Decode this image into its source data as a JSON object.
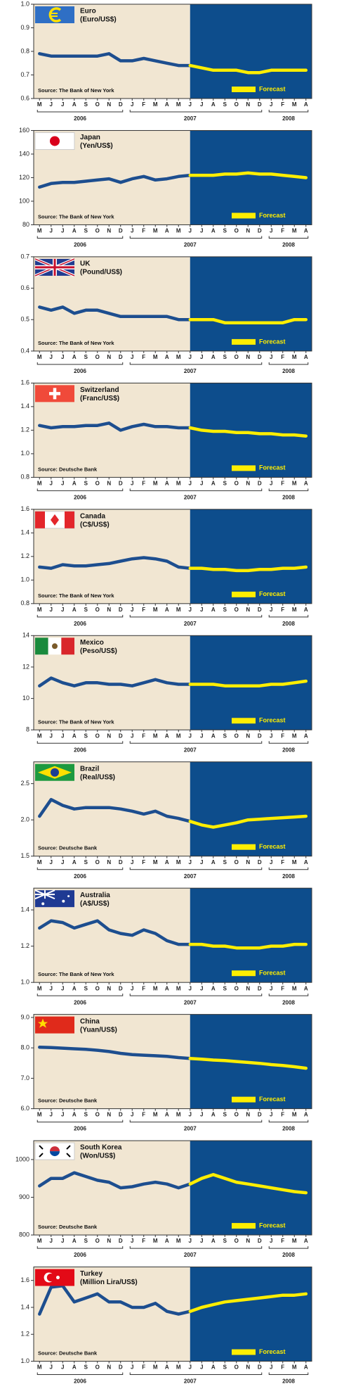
{
  "chart_data": [
    {
      "type": "line",
      "title": "Euro",
      "subtitle": "(Euro/US$)",
      "source": "Source: The Bank of New York",
      "categories": [
        "M",
        "J",
        "J",
        "A",
        "S",
        "O",
        "N",
        "D",
        "J",
        "F",
        "M",
        "A",
        "M",
        "J",
        "J",
        "A",
        "S",
        "O",
        "N",
        "D",
        "J",
        "F",
        "M",
        "A"
      ],
      "years": [
        "2006",
        "2007",
        "2008"
      ],
      "ylim": [
        0.6,
        1.0
      ],
      "yticks": [
        0.6,
        0.7,
        0.8,
        0.9,
        {
          "value": 1,
          "label": "1.0"
        }
      ],
      "series": [
        {
          "color": "#1d4e8f",
          "values": [
            0.79,
            0.78,
            0.78,
            0.78,
            0.78,
            0.78,
            0.79,
            0.76,
            0.76,
            0.77,
            0.76,
            0.75,
            0.74,
            0.74,
            null,
            null,
            null,
            null,
            null,
            null,
            null,
            null,
            null,
            null
          ]
        },
        {
          "name": "Forecast",
          "color": "#ffee00",
          "values": [
            null,
            null,
            null,
            null,
            null,
            null,
            null,
            null,
            null,
            null,
            null,
            null,
            null,
            0.74,
            0.73,
            0.72,
            0.72,
            0.72,
            0.71,
            0.71,
            0.72,
            0.72,
            0.72,
            0.72
          ]
        }
      ]
    },
    {
      "type": "line",
      "title": "Japan",
      "subtitle": "(Yen/US$)",
      "source": "Source: The Bank of New York",
      "categories": [
        "M",
        "J",
        "J",
        "A",
        "S",
        "O",
        "N",
        "D",
        "J",
        "F",
        "M",
        "A",
        "M",
        "J",
        "J",
        "A",
        "S",
        "O",
        "N",
        "D",
        "J",
        "F",
        "M",
        "A"
      ],
      "years": [
        "2006",
        "2007",
        "2008"
      ],
      "ylim": [
        80,
        160
      ],
      "yticks": [
        80,
        100,
        120,
        140,
        160
      ],
      "series": [
        {
          "color": "#1d4e8f",
          "values": [
            112,
            115,
            116,
            116,
            117,
            118,
            119,
            116,
            119,
            121,
            118,
            119,
            121,
            122,
            null,
            null,
            null,
            null,
            null,
            null,
            null,
            null,
            null,
            null
          ]
        },
        {
          "name": "Forecast",
          "color": "#ffee00",
          "values": [
            null,
            null,
            null,
            null,
            null,
            null,
            null,
            null,
            null,
            null,
            null,
            null,
            null,
            122,
            122,
            122,
            123,
            123,
            124,
            123,
            123,
            122,
            121,
            120
          ]
        }
      ]
    },
    {
      "type": "line",
      "title": "UK",
      "subtitle": "(Pound/US$)",
      "source": "Source: The Bank of New York",
      "categories": [
        "M",
        "J",
        "J",
        "A",
        "S",
        "O",
        "N",
        "D",
        "J",
        "F",
        "M",
        "A",
        "M",
        "J",
        "J",
        "A",
        "S",
        "O",
        "N",
        "D",
        "J",
        "F",
        "M",
        "A"
      ],
      "years": [
        "2006",
        "2007",
        "2008"
      ],
      "ylim": [
        0.4,
        0.7
      ],
      "yticks": [
        0.4,
        0.5,
        0.6,
        0.7
      ],
      "series": [
        {
          "color": "#1d4e8f",
          "values": [
            0.54,
            0.53,
            0.54,
            0.52,
            0.53,
            0.53,
            0.52,
            0.51,
            0.51,
            0.51,
            0.51,
            0.51,
            0.5,
            0.5,
            null,
            null,
            null,
            null,
            null,
            null,
            null,
            null,
            null,
            null
          ]
        },
        {
          "name": "Forecast",
          "color": "#ffee00",
          "values": [
            null,
            null,
            null,
            null,
            null,
            null,
            null,
            null,
            null,
            null,
            null,
            null,
            null,
            0.5,
            0.5,
            0.5,
            0.49,
            0.49,
            0.49,
            0.49,
            0.49,
            0.49,
            0.5,
            0.5
          ]
        }
      ]
    },
    {
      "type": "line",
      "title": "Switzerland",
      "subtitle": "(Franc/US$)",
      "source": "Source: Deutsche Bank",
      "categories": [
        "M",
        "J",
        "J",
        "A",
        "S",
        "O",
        "N",
        "D",
        "J",
        "F",
        "M",
        "A",
        "M",
        "J",
        "J",
        "A",
        "S",
        "O",
        "N",
        "D",
        "J",
        "F",
        "M",
        "A"
      ],
      "years": [
        "2006",
        "2007",
        "2008"
      ],
      "ylim": [
        0.8,
        1.6
      ],
      "yticks": [
        0.8,
        {
          "value": 1,
          "label": "1.0"
        },
        1.2,
        1.4,
        1.6
      ],
      "series": [
        {
          "color": "#1d4e8f",
          "values": [
            1.24,
            1.22,
            1.23,
            1.23,
            1.24,
            1.24,
            1.26,
            1.2,
            1.23,
            1.25,
            1.23,
            1.23,
            1.22,
            1.22,
            null,
            null,
            null,
            null,
            null,
            null,
            null,
            null,
            null,
            null
          ]
        },
        {
          "name": "Forecast",
          "color": "#ffee00",
          "values": [
            null,
            null,
            null,
            null,
            null,
            null,
            null,
            null,
            null,
            null,
            null,
            null,
            null,
            1.22,
            1.2,
            1.19,
            1.19,
            1.18,
            1.18,
            1.17,
            1.17,
            1.16,
            1.16,
            1.15
          ]
        }
      ]
    },
    {
      "type": "line",
      "title": "Canada",
      "subtitle": "(C$/US$)",
      "source": "Source: The Bank of New York",
      "categories": [
        "M",
        "J",
        "J",
        "A",
        "S",
        "O",
        "N",
        "D",
        "J",
        "F",
        "M",
        "A",
        "M",
        "J",
        "J",
        "A",
        "S",
        "O",
        "N",
        "D",
        "J",
        "F",
        "M",
        "A"
      ],
      "years": [
        "2006",
        "2007",
        "2008"
      ],
      "ylim": [
        0.8,
        1.6
      ],
      "yticks": [
        0.8,
        {
          "value": 1,
          "label": "1.0"
        },
        1.2,
        1.4,
        1.6
      ],
      "series": [
        {
          "color": "#1d4e8f",
          "values": [
            1.11,
            1.1,
            1.13,
            1.12,
            1.12,
            1.13,
            1.14,
            1.16,
            1.18,
            1.19,
            1.18,
            1.16,
            1.11,
            1.1,
            null,
            null,
            null,
            null,
            null,
            null,
            null,
            null,
            null,
            null
          ]
        },
        {
          "name": "Forecast",
          "color": "#ffee00",
          "values": [
            null,
            null,
            null,
            null,
            null,
            null,
            null,
            null,
            null,
            null,
            null,
            null,
            null,
            1.1,
            1.1,
            1.09,
            1.09,
            1.08,
            1.08,
            1.09,
            1.09,
            1.1,
            1.1,
            1.11
          ]
        }
      ]
    },
    {
      "type": "line",
      "title": "Mexico",
      "subtitle": "(Peso/US$)",
      "source": "Source: The Bank of New York",
      "categories": [
        "M",
        "J",
        "J",
        "A",
        "S",
        "O",
        "N",
        "D",
        "J",
        "F",
        "M",
        "A",
        "M",
        "J",
        "J",
        "A",
        "S",
        "O",
        "N",
        "D",
        "J",
        "F",
        "M",
        "A"
      ],
      "years": [
        "2006",
        "2007",
        "2008"
      ],
      "ylim": [
        8,
        14
      ],
      "yticks": [
        8,
        10,
        12,
        14
      ],
      "series": [
        {
          "color": "#1d4e8f",
          "values": [
            10.8,
            11.3,
            11.0,
            10.8,
            11.0,
            11.0,
            10.9,
            10.9,
            10.8,
            11.0,
            11.2,
            11.0,
            10.9,
            10.9,
            null,
            null,
            null,
            null,
            null,
            null,
            null,
            null,
            null,
            null
          ]
        },
        {
          "name": "Forecast",
          "color": "#ffee00",
          "values": [
            null,
            null,
            null,
            null,
            null,
            null,
            null,
            null,
            null,
            null,
            null,
            null,
            null,
            10.9,
            10.9,
            10.9,
            10.8,
            10.8,
            10.8,
            10.8,
            10.9,
            10.9,
            11.0,
            11.1
          ]
        }
      ]
    },
    {
      "type": "line",
      "title": "Brazil",
      "subtitle": "(Real/US$)",
      "source": "Source: Deutsche Bank",
      "categories": [
        "M",
        "J",
        "J",
        "A",
        "S",
        "O",
        "N",
        "D",
        "J",
        "F",
        "M",
        "A",
        "M",
        "J",
        "J",
        "A",
        "S",
        "O",
        "N",
        "D",
        "J",
        "F",
        "M",
        "A"
      ],
      "years": [
        "2006",
        "2007",
        "2008"
      ],
      "ylim": [
        1.5,
        2.8
      ],
      "yticks": [
        1.5,
        {
          "value": 2,
          "label": "2.0"
        },
        2.5
      ],
      "series": [
        {
          "color": "#1d4e8f",
          "values": [
            2.05,
            2.28,
            2.2,
            2.15,
            2.17,
            2.17,
            2.17,
            2.15,
            2.12,
            2.08,
            2.12,
            2.05,
            2.02,
            1.98,
            null,
            null,
            null,
            null,
            null,
            null,
            null,
            null,
            null,
            null
          ]
        },
        {
          "name": "Forecast",
          "color": "#ffee00",
          "values": [
            null,
            null,
            null,
            null,
            null,
            null,
            null,
            null,
            null,
            null,
            null,
            null,
            null,
            1.98,
            1.93,
            1.9,
            1.93,
            1.96,
            2.0,
            2.01,
            2.02,
            2.03,
            2.04,
            2.05
          ]
        }
      ]
    },
    {
      "type": "line",
      "title": "Australia",
      "subtitle": "(A$/US$)",
      "source": "Source: The Bank of New York",
      "categories": [
        "M",
        "J",
        "J",
        "A",
        "S",
        "O",
        "N",
        "D",
        "J",
        "F",
        "M",
        "A",
        "M",
        "J",
        "J",
        "A",
        "S",
        "O",
        "N",
        "D",
        "J",
        "F",
        "M",
        "A"
      ],
      "years": [
        "2006",
        "2007",
        "2008"
      ],
      "ylim": [
        1.0,
        1.52
      ],
      "yticks": [
        {
          "value": 1,
          "label": "1.0"
        },
        1.2,
        1.4
      ],
      "series": [
        {
          "color": "#1d4e8f",
          "values": [
            1.3,
            1.34,
            1.33,
            1.3,
            1.32,
            1.34,
            1.29,
            1.27,
            1.26,
            1.29,
            1.27,
            1.23,
            1.21,
            1.21,
            null,
            null,
            null,
            null,
            null,
            null,
            null,
            null,
            null,
            null
          ]
        },
        {
          "name": "Forecast",
          "color": "#ffee00",
          "values": [
            null,
            null,
            null,
            null,
            null,
            null,
            null,
            null,
            null,
            null,
            null,
            null,
            null,
            1.21,
            1.21,
            1.2,
            1.2,
            1.19,
            1.19,
            1.19,
            1.2,
            1.2,
            1.21,
            1.21
          ]
        }
      ]
    },
    {
      "type": "line",
      "title": "China",
      "subtitle": "(Yuan/US$)",
      "source": "Source: Deutsche Bank",
      "categories": [
        "M",
        "J",
        "J",
        "A",
        "S",
        "O",
        "N",
        "D",
        "J",
        "F",
        "M",
        "A",
        "M",
        "J",
        "J",
        "A",
        "S",
        "O",
        "N",
        "D",
        "J",
        "F",
        "M",
        "A"
      ],
      "years": [
        "2006",
        "2007",
        "2008"
      ],
      "ylim": [
        6.0,
        9.1
      ],
      "yticks": [
        {
          "value": 6,
          "label": "6.0"
        },
        {
          "value": 7,
          "label": "7.0"
        },
        {
          "value": 8,
          "label": "8.0"
        },
        {
          "value": 9,
          "label": "9.0"
        }
      ],
      "series": [
        {
          "color": "#1d4e8f",
          "values": [
            8.02,
            8.01,
            7.99,
            7.97,
            7.95,
            7.92,
            7.88,
            7.82,
            7.78,
            7.76,
            7.74,
            7.72,
            7.68,
            7.65,
            null,
            null,
            null,
            null,
            null,
            null,
            null,
            null,
            null,
            null
          ]
        },
        {
          "name": "Forecast",
          "color": "#ffee00",
          "values": [
            null,
            null,
            null,
            null,
            null,
            null,
            null,
            null,
            null,
            null,
            null,
            null,
            null,
            7.65,
            7.63,
            7.6,
            7.58,
            7.55,
            7.52,
            7.49,
            7.45,
            7.42,
            7.38,
            7.33
          ]
        }
      ]
    },
    {
      "type": "line",
      "title": "South Korea",
      "subtitle": "(Won/US$)",
      "source": "Source: Deutsche Bank",
      "categories": [
        "M",
        "J",
        "J",
        "A",
        "S",
        "O",
        "N",
        "D",
        "J",
        "F",
        "M",
        "A",
        "M",
        "J",
        "J",
        "A",
        "S",
        "O",
        "N",
        "D",
        "J",
        "F",
        "M",
        "A"
      ],
      "years": [
        "2006",
        "2007",
        "2008"
      ],
      "ylim": [
        800,
        1050
      ],
      "yticks": [
        800,
        900,
        1000
      ],
      "series": [
        {
          "color": "#1d4e8f",
          "values": [
            930,
            950,
            950,
            965,
            955,
            945,
            940,
            925,
            928,
            935,
            940,
            935,
            925,
            935,
            null,
            null,
            null,
            null,
            null,
            null,
            null,
            null,
            null,
            null
          ]
        },
        {
          "name": "Forecast",
          "color": "#ffee00",
          "values": [
            null,
            null,
            null,
            null,
            null,
            null,
            null,
            null,
            null,
            null,
            null,
            null,
            null,
            935,
            950,
            960,
            950,
            940,
            935,
            930,
            925,
            920,
            915,
            912
          ]
        }
      ]
    },
    {
      "type": "line",
      "title": "Turkey",
      "subtitle": "(Million Lira/US$)",
      "source": "Source: Deutsche Bank",
      "categories": [
        "M",
        "J",
        "J",
        "A",
        "S",
        "O",
        "N",
        "D",
        "J",
        "F",
        "M",
        "A",
        "M",
        "J",
        "J",
        "A",
        "S",
        "O",
        "N",
        "D",
        "J",
        "F",
        "M",
        "A"
      ],
      "years": [
        "2006",
        "2007",
        "2008"
      ],
      "ylim": [
        1.0,
        1.7
      ],
      "yticks": [
        {
          "value": 1,
          "label": "1.0"
        },
        1.2,
        1.4,
        1.6
      ],
      "series": [
        {
          "color": "#1d4e8f",
          "values": [
            1.35,
            1.55,
            1.56,
            1.44,
            1.47,
            1.5,
            1.44,
            1.44,
            1.4,
            1.4,
            1.43,
            1.37,
            1.35,
            1.37,
            null,
            null,
            null,
            null,
            null,
            null,
            null,
            null,
            null,
            null
          ]
        },
        {
          "name": "Forecast",
          "color": "#ffee00",
          "values": [
            null,
            null,
            null,
            null,
            null,
            null,
            null,
            null,
            null,
            null,
            null,
            null,
            null,
            1.37,
            1.4,
            1.42,
            1.44,
            1.45,
            1.46,
            1.47,
            1.48,
            1.49,
            1.49,
            1.5
          ]
        }
      ]
    }
  ]
}
